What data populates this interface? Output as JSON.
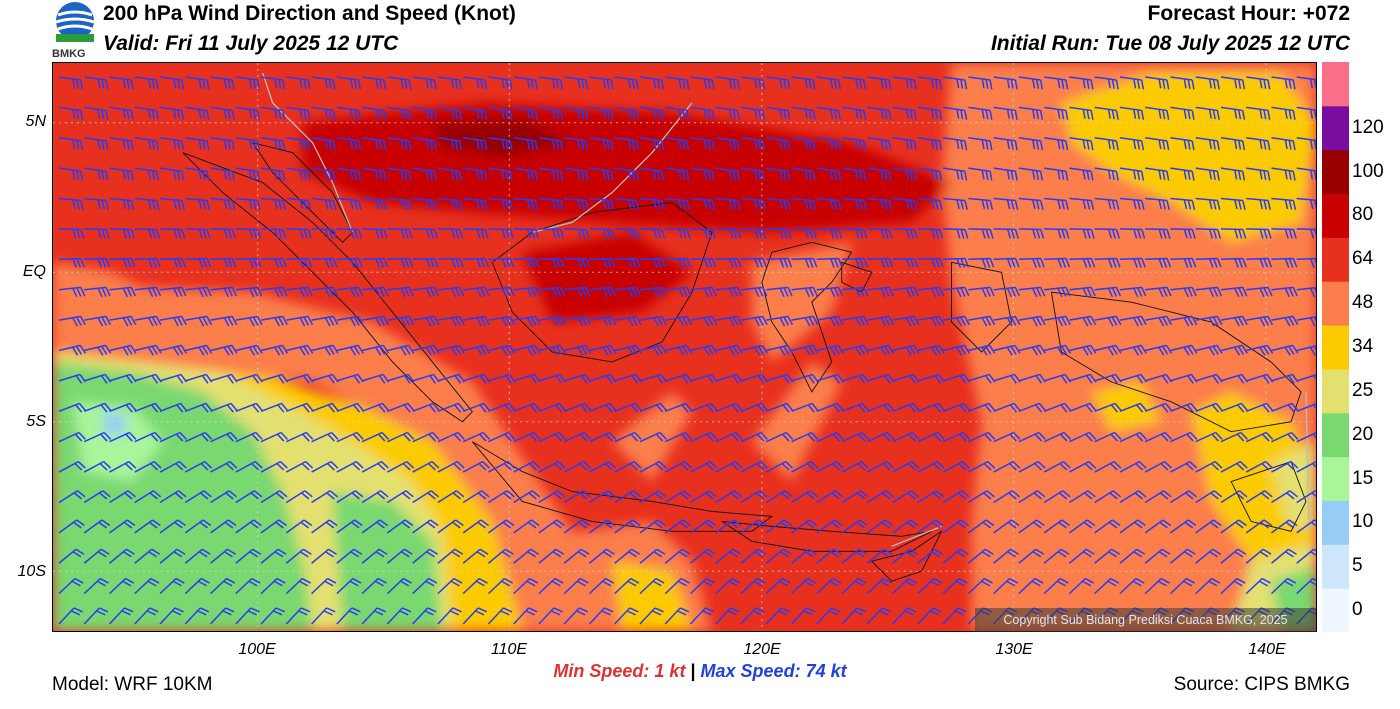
{
  "header": {
    "title": "200 hPa Wind Direction and Speed (Knot)",
    "valid": "Valid: Fri 11 July 2025 12 UTC",
    "forecast_hour": "Forecast Hour: +072",
    "initial_run": "Initial Run: Tue 08 July 2025 12 UTC"
  },
  "logo": {
    "text": "BMKG",
    "icon": "bmkg-logo-icon"
  },
  "map": {
    "lat_labels": [
      {
        "lat": 5,
        "label": "5N"
      },
      {
        "lat": 0,
        "label": "EQ"
      },
      {
        "lat": -5,
        "label": "5S"
      },
      {
        "lat": -10,
        "label": "10S"
      }
    ],
    "lon_labels": [
      {
        "lon": 100,
        "label": "100E"
      },
      {
        "lon": 110,
        "label": "110E"
      },
      {
        "lon": 120,
        "label": "120E"
      },
      {
        "lon": 130,
        "label": "130E"
      },
      {
        "lon": 140,
        "label": "140E"
      }
    ],
    "lon_range": [
      92,
      142
    ],
    "lat_range": [
      -12,
      7
    ],
    "grid": true,
    "wind_barb_color": "#2a3cf0"
  },
  "colorbar": {
    "levels": [
      {
        "label": "0",
        "color": "#f0f6ff"
      },
      {
        "label": "5",
        "color": "#cde6fa"
      },
      {
        "label": "10",
        "color": "#96ccf5"
      },
      {
        "label": "15",
        "color": "#a8f59a"
      },
      {
        "label": "20",
        "color": "#7ad870"
      },
      {
        "label": "25",
        "color": "#e4e070"
      },
      {
        "label": "34",
        "color": "#fbcb00"
      },
      {
        "label": "48",
        "color": "#fb7e4c"
      },
      {
        "label": "64",
        "color": "#e8301e"
      },
      {
        "label": "80",
        "color": "#c80000"
      },
      {
        "label": "100",
        "color": "#980000"
      },
      {
        "label": "120",
        "color": "#7a0da0"
      },
      {
        "label": "",
        "color": "#fb6e88"
      }
    ]
  },
  "footer": {
    "min_label": "Min Speed:",
    "min_value": "1 kt",
    "separator": "|",
    "max_label": "Max Speed:",
    "max_value": "74 kt",
    "model": "Model: WRF 10KM",
    "source": "Source: CIPS BMKG",
    "copyright": "Copyright Sub Bidang Prediksi Cuaca BMKG, 2025"
  }
}
